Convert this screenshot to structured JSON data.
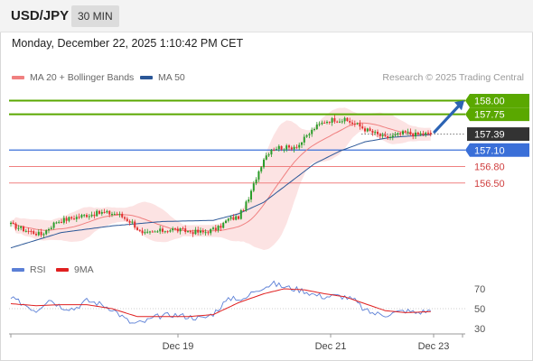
{
  "header": {
    "symbol": "USD/JPY",
    "interval": "30 MIN"
  },
  "datetime": "Monday, December 22, 2025 1:10:42 PM CET",
  "legend": {
    "ma20": {
      "label": "MA 20 + Bollinger Bands",
      "color": "#f08080"
    },
    "ma50": {
      "label": "MA 50",
      "color": "#2b5797"
    },
    "rsi": {
      "label": "RSI",
      "color": "#5b7fd6"
    },
    "rsi_ma": {
      "label": "9MA",
      "color": "#e02020"
    }
  },
  "credit": "Research © 2025 Trading Central",
  "colors": {
    "resistance": "#5aa800",
    "current": "#333333",
    "pivot": "#3a6fd8",
    "support": "#f08080",
    "bull": "#2a9d2a",
    "bear": "#e23030",
    "band": "#fbd9d9",
    "arrow": "#2c64b4"
  },
  "chart_data": [
    {
      "type": "candlestick",
      "ylim": [
        155.15,
        158.27
      ],
      "x_ticks": [
        "Dec 19",
        "Dec 21",
        "Dec 23"
      ],
      "levels": [
        {
          "label": "158.00",
          "value": 158.0,
          "kind": "resistance"
        },
        {
          "label": "157.75",
          "value": 157.75,
          "kind": "resistance"
        },
        {
          "label": "157.39",
          "value": 157.39,
          "kind": "current"
        },
        {
          "label": "157.10",
          "value": 157.1,
          "kind": "pivot"
        },
        {
          "label": "156.80",
          "value": 156.8,
          "kind": "support"
        },
        {
          "label": "156.50",
          "value": 156.5,
          "kind": "support"
        }
      ],
      "anchors": [
        [
          0,
          155.74
        ],
        [
          6,
          155.64
        ],
        [
          12,
          155.56
        ],
        [
          18,
          155.8
        ],
        [
          24,
          155.86
        ],
        [
          30,
          155.92
        ],
        [
          36,
          155.96
        ],
        [
          42,
          155.94
        ],
        [
          48,
          155.78
        ],
        [
          52,
          155.56
        ],
        [
          58,
          155.62
        ],
        [
          64,
          155.66
        ],
        [
          70,
          155.62
        ],
        [
          76,
          155.6
        ],
        [
          82,
          155.68
        ],
        [
          86,
          155.84
        ],
        [
          90,
          155.88
        ],
        [
          94,
          156.2
        ],
        [
          97,
          156.6
        ],
        [
          100,
          156.95
        ],
        [
          103,
          157.12
        ],
        [
          106,
          157.15
        ],
        [
          110,
          157.14
        ],
        [
          114,
          157.2
        ],
        [
          117,
          157.35
        ],
        [
          120,
          157.5
        ],
        [
          124,
          157.62
        ],
        [
          128,
          157.66
        ],
        [
          132,
          157.64
        ],
        [
          136,
          157.58
        ],
        [
          140,
          157.48
        ],
        [
          144,
          157.4
        ],
        [
          148,
          157.32
        ],
        [
          152,
          157.36
        ],
        [
          156,
          157.42
        ],
        [
          160,
          157.38
        ],
        [
          163,
          157.4
        ],
        [
          166,
          157.39
        ]
      ],
      "ma50_anchors": [
        [
          0,
          155.32
        ],
        [
          20,
          155.6
        ],
        [
          40,
          155.72
        ],
        [
          60,
          155.8
        ],
        [
          80,
          155.82
        ],
        [
          90,
          155.94
        ],
        [
          100,
          156.15
        ],
        [
          110,
          156.5
        ],
        [
          120,
          156.85
        ],
        [
          130,
          157.08
        ],
        [
          140,
          157.25
        ],
        [
          150,
          157.33
        ],
        [
          166,
          157.38
        ]
      ],
      "forecast_arrow": {
        "from": 157.43,
        "to": 157.97
      }
    },
    {
      "type": "line",
      "title": "RSI",
      "ylim": [
        20,
        80
      ],
      "y_ticks": [
        70,
        50,
        30
      ],
      "rsi_anchors": [
        [
          0,
          60
        ],
        [
          5,
          55
        ],
        [
          10,
          48
        ],
        [
          15,
          60
        ],
        [
          20,
          52
        ],
        [
          25,
          50
        ],
        [
          30,
          58
        ],
        [
          35,
          55
        ],
        [
          40,
          50
        ],
        [
          43,
          44
        ],
        [
          46,
          38
        ],
        [
          48,
          35
        ],
        [
          52,
          36
        ],
        [
          58,
          42
        ],
        [
          64,
          44
        ],
        [
          70,
          42
        ],
        [
          76,
          40
        ],
        [
          80,
          45
        ],
        [
          84,
          55
        ],
        [
          88,
          62
        ],
        [
          92,
          58
        ],
        [
          96,
          68
        ],
        [
          100,
          72
        ],
        [
          104,
          75
        ],
        [
          108,
          72
        ],
        [
          112,
          70
        ],
        [
          116,
          68
        ],
        [
          120,
          64
        ],
        [
          124,
          62
        ],
        [
          128,
          63
        ],
        [
          132,
          62
        ],
        [
          136,
          58
        ],
        [
          140,
          48
        ],
        [
          144,
          45
        ],
        [
          148,
          44
        ],
        [
          152,
          46
        ],
        [
          156,
          48
        ],
        [
          160,
          46
        ],
        [
          166,
          48
        ]
      ],
      "ma_anchors": [
        [
          0,
          55
        ],
        [
          10,
          53
        ],
        [
          20,
          54
        ],
        [
          30,
          54
        ],
        [
          40,
          50
        ],
        [
          50,
          42
        ],
        [
          60,
          42
        ],
        [
          70,
          42
        ],
        [
          80,
          44
        ],
        [
          90,
          56
        ],
        [
          100,
          65
        ],
        [
          108,
          70
        ],
        [
          116,
          69
        ],
        [
          124,
          65
        ],
        [
          132,
          62
        ],
        [
          140,
          55
        ],
        [
          148,
          48
        ],
        [
          156,
          46
        ],
        [
          166,
          47
        ]
      ]
    }
  ]
}
